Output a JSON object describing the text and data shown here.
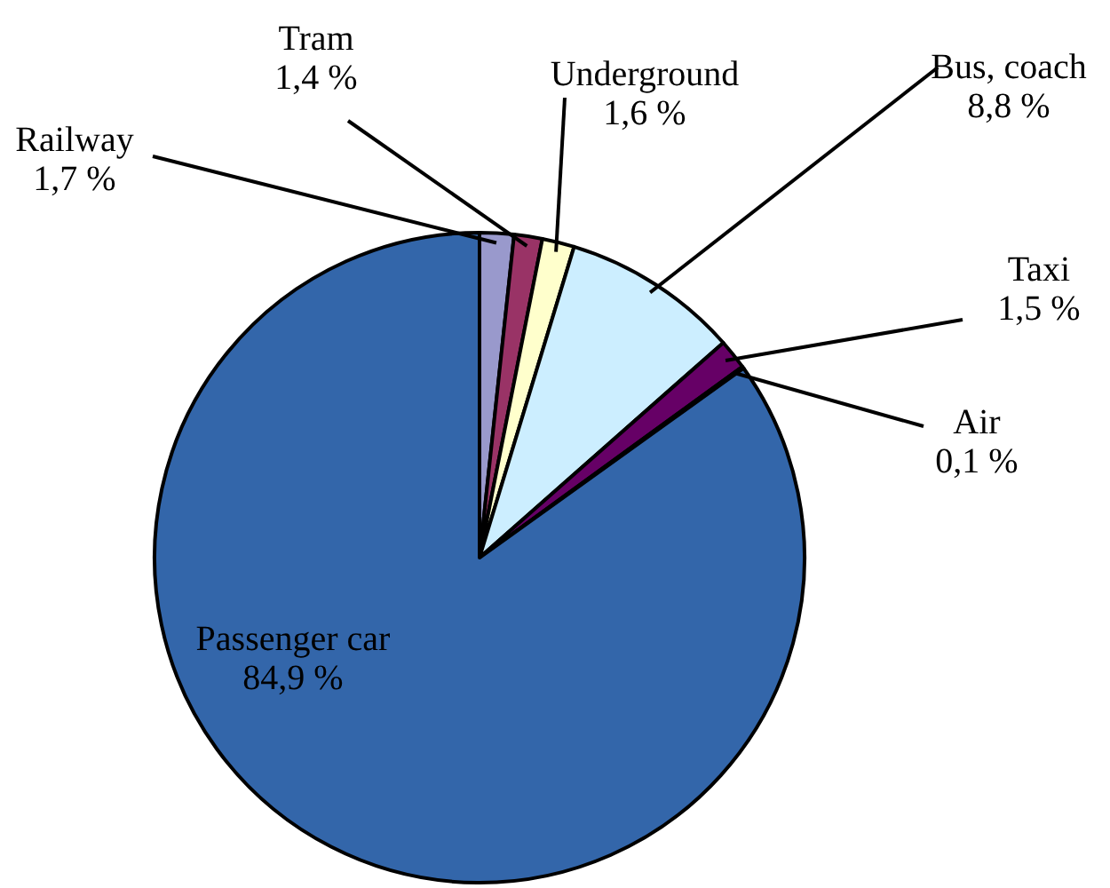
{
  "chart_data": {
    "type": "pie",
    "categories": [
      "Railway",
      "Tram",
      "Underground",
      "Bus, coach",
      "Taxi",
      "Air",
      "Passenger car"
    ],
    "values": [
      1.7,
      1.4,
      1.6,
      8.8,
      1.5,
      0.1,
      84.9
    ],
    "colors": [
      "#9999cc",
      "#993366",
      "#ffffcc",
      "#cceeff",
      "#660066",
      "#7a3a80",
      "#3366aa"
    ],
    "value_labels": [
      "1,7 %",
      "1,4 %",
      "1,6 %",
      "8,8 %",
      "1,5 %",
      "0,1 %",
      "84,9 %"
    ]
  }
}
